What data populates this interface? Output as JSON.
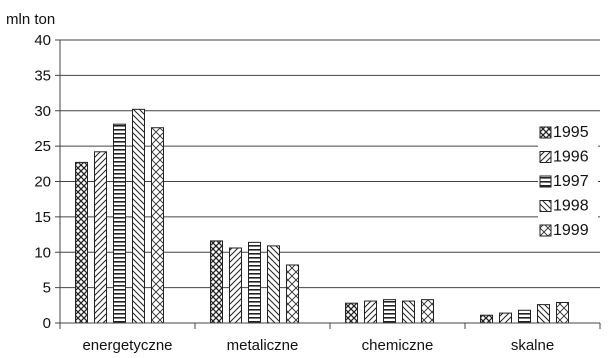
{
  "chart_data": {
    "type": "bar",
    "title": "",
    "ylabel": "mln ton",
    "xlabel": "",
    "ylim": [
      0,
      40
    ],
    "yticks": [
      0,
      5,
      10,
      15,
      20,
      25,
      30,
      35,
      40
    ],
    "grid": true,
    "legend_position": "right",
    "categories": [
      "energetyczne",
      "metaliczne",
      "chemiczne",
      "skalne"
    ],
    "series": [
      {
        "name": "1995",
        "values": [
          22.7,
          11.6,
          2.8,
          1.1
        ]
      },
      {
        "name": "1996",
        "values": [
          24.2,
          10.6,
          3.1,
          1.4
        ]
      },
      {
        "name": "1997",
        "values": [
          28.1,
          11.4,
          3.3,
          1.8
        ]
      },
      {
        "name": "1998",
        "values": [
          30.2,
          10.9,
          3.1,
          2.6
        ]
      },
      {
        "name": "1999",
        "values": [
          27.6,
          8.2,
          3.3,
          2.9
        ]
      }
    ]
  }
}
